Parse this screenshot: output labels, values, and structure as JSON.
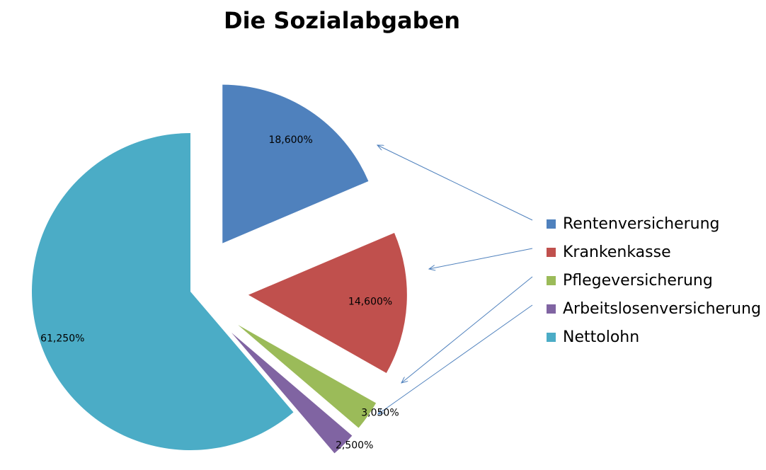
{
  "chart_data": {
    "type": "pie",
    "title": "Die Sozialabgaben",
    "exploded": true,
    "legend_position": "right",
    "categories": [
      "Rentenversicherung",
      "Krankenkasse",
      "Pflegeversicherung",
      "Arbeitslosenversicherung",
      "Nettolohn"
    ],
    "values": [
      18.6,
      14.6,
      3.05,
      2.5,
      61.25
    ],
    "data_labels": [
      "18,600%",
      "14,600%",
      "3,050%",
      "2,500%",
      "61,250%"
    ],
    "colors": [
      "#4F81BD",
      "#C0504D",
      "#9BBB59",
      "#8064A2",
      "#4BACC6"
    ]
  }
}
